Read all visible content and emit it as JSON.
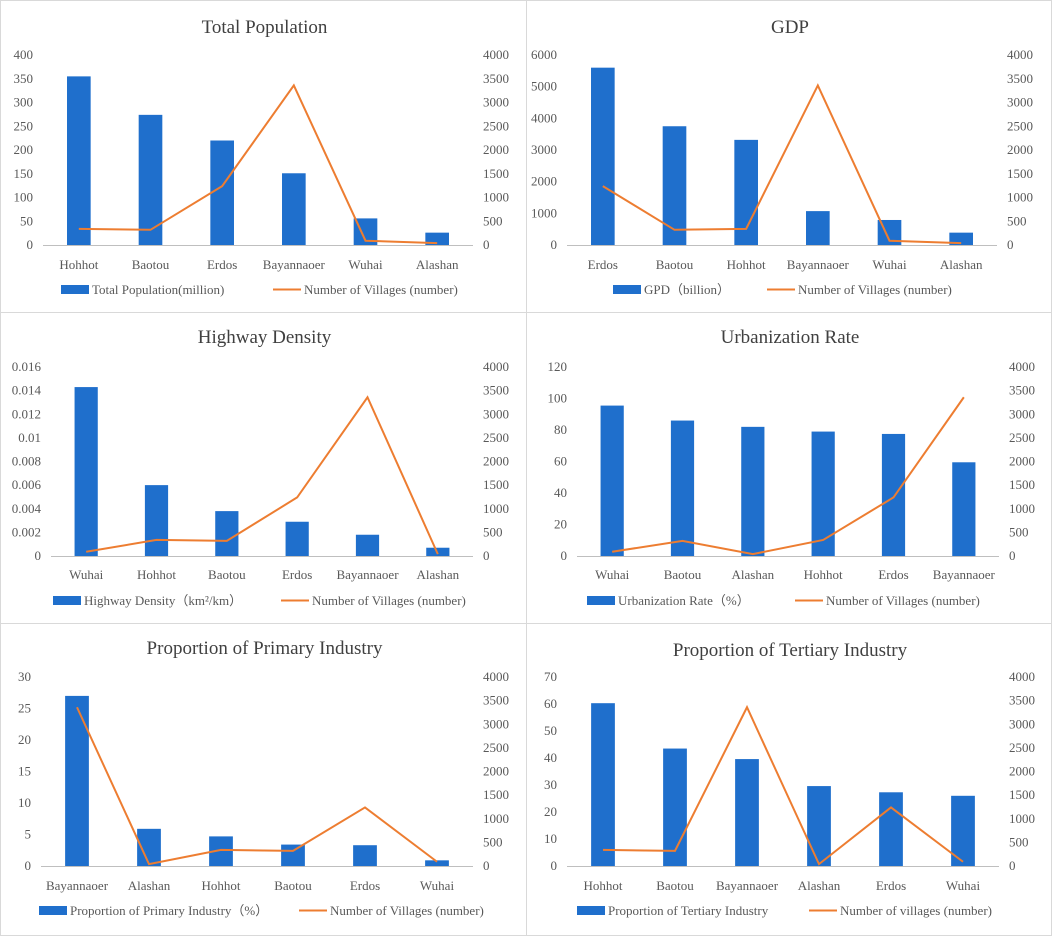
{
  "colors": {
    "bar": "#1f6fcc",
    "line": "#ed7d31",
    "axis": "#bfbfbf",
    "text": "#595959"
  },
  "chart_data": [
    {
      "type": "bar+line",
      "title": "Total Population",
      "categories": [
        "Hohhot",
        "Baotou",
        "Erdos",
        "Bayannaoer",
        "Wuhai",
        "Alashan"
      ],
      "series": [
        {
          "name": "Total Population(million)",
          "type": "bar",
          "axis": "left",
          "values": [
            355,
            274,
            220,
            151,
            56,
            26
          ]
        },
        {
          "name": "Number of Villages (number)",
          "type": "line",
          "axis": "right",
          "values": [
            340,
            320,
            1240,
            3360,
            90,
            40
          ]
        }
      ],
      "left_axis": {
        "min": 0,
        "max": 400,
        "step": 50,
        "ticks": [
          "0",
          "50",
          "100",
          "150",
          "200",
          "250",
          "300",
          "350",
          "400"
        ]
      },
      "right_axis": {
        "min": 0,
        "max": 4000,
        "step": 500,
        "ticks": [
          "0",
          "500",
          "1000",
          "1500",
          "2000",
          "2500",
          "3000",
          "3500",
          "4000"
        ]
      },
      "legend_position": "bottom"
    },
    {
      "type": "bar+line",
      "title": "GDP",
      "categories": [
        "Erdos",
        "Baotou",
        "Hohhot",
        "Bayannaoer",
        "Wuhai",
        "Alashan"
      ],
      "series": [
        {
          "name": "GPD（billion）",
          "type": "bar",
          "axis": "left",
          "values": [
            5600,
            3750,
            3320,
            1070,
            790,
            390
          ]
        },
        {
          "name": "Number of Villages (number)",
          "type": "line",
          "axis": "right",
          "values": [
            1240,
            320,
            340,
            3360,
            90,
            40
          ]
        }
      ],
      "left_axis": {
        "min": 0,
        "max": 6000,
        "step": 1000,
        "ticks": [
          "0",
          "1000",
          "2000",
          "3000",
          "4000",
          "5000",
          "6000"
        ]
      },
      "right_axis": {
        "min": 0,
        "max": 4000,
        "step": 500,
        "ticks": [
          "0",
          "500",
          "1000",
          "1500",
          "2000",
          "2500",
          "3000",
          "3500",
          "4000"
        ]
      },
      "legend_position": "bottom"
    },
    {
      "type": "bar+line",
      "title": "Highway Density",
      "categories": [
        "Wuhai",
        "Hohhot",
        "Baotou",
        "Erdos",
        "Bayannaoer",
        "Alashan"
      ],
      "series": [
        {
          "name": "Highway Density（km²/km）",
          "type": "bar",
          "axis": "left",
          "values": [
            0.0143,
            0.006,
            0.0038,
            0.0029,
            0.0018,
            0.0007
          ]
        },
        {
          "name": "Number of Villages (number)",
          "type": "line",
          "axis": "right",
          "values": [
            90,
            340,
            320,
            1240,
            3360,
            40
          ]
        }
      ],
      "left_axis": {
        "min": 0,
        "max": 0.016,
        "step": 0.002,
        "ticks": [
          "0",
          "0.002",
          "0.004",
          "0.006",
          "0.008",
          "0.01",
          "0.012",
          "0.014",
          "0.016"
        ]
      },
      "right_axis": {
        "min": 0,
        "max": 4000,
        "step": 500,
        "ticks": [
          "0",
          "500",
          "1000",
          "1500",
          "2000",
          "2500",
          "3000",
          "3500",
          "4000"
        ]
      },
      "legend_position": "bottom"
    },
    {
      "type": "bar+line",
      "title": "Urbanization Rate",
      "categories": [
        "Wuhai",
        "Baotou",
        "Alashan",
        "Hohhot",
        "Erdos",
        "Bayannaoer"
      ],
      "series": [
        {
          "name": "Urbanization Rate（%）",
          "type": "bar",
          "axis": "left",
          "values": [
            95.5,
            86,
            82,
            79,
            77.5,
            59.5
          ]
        },
        {
          "name": "Number of Villages (number)",
          "type": "line",
          "axis": "right",
          "values": [
            90,
            320,
            40,
            340,
            1240,
            3360
          ]
        }
      ],
      "left_axis": {
        "min": 0,
        "max": 120,
        "step": 20,
        "ticks": [
          "0",
          "20",
          "40",
          "60",
          "80",
          "100",
          "120"
        ]
      },
      "right_axis": {
        "min": 0,
        "max": 4000,
        "step": 500,
        "ticks": [
          "0",
          "500",
          "1000",
          "1500",
          "2000",
          "2500",
          "3000",
          "3500",
          "4000"
        ]
      },
      "legend_position": "bottom"
    },
    {
      "type": "bar+line",
      "title": "Proportion of Primary Industry",
      "categories": [
        "Bayannaoer",
        "Alashan",
        "Hohhot",
        "Baotou",
        "Erdos",
        "Wuhai"
      ],
      "series": [
        {
          "name": "Proportion of Primary Industry（%）",
          "type": "bar",
          "axis": "left",
          "values": [
            27,
            5.9,
            4.7,
            3.4,
            3.3,
            0.9
          ]
        },
        {
          "name": "Number of Villages (number)",
          "type": "line",
          "axis": "right",
          "values": [
            3360,
            40,
            340,
            320,
            1240,
            90
          ]
        }
      ],
      "left_axis": {
        "min": 0,
        "max": 30,
        "step": 5,
        "ticks": [
          "0",
          "5",
          "10",
          "15",
          "20",
          "25",
          "30"
        ]
      },
      "right_axis": {
        "min": 0,
        "max": 4000,
        "step": 500,
        "ticks": [
          "0",
          "500",
          "1000",
          "1500",
          "2000",
          "2500",
          "3000",
          "3500",
          "4000"
        ]
      },
      "legend_position": "bottom"
    },
    {
      "type": "bar+line",
      "title": "Proportion of Tertiary Industry",
      "categories": [
        "Hohhot",
        "Baotou",
        "Bayannaoer",
        "Alashan",
        "Erdos",
        "Wuhai"
      ],
      "series": [
        {
          "name": "Proportion of Tertiary Industry",
          "type": "bar",
          "axis": "left",
          "values": [
            60.3,
            43.5,
            39.6,
            29.6,
            27.3,
            26
          ]
        },
        {
          "name": "Number of villages (number)",
          "type": "line",
          "axis": "right",
          "values": [
            340,
            320,
            3360,
            40,
            1240,
            90
          ]
        }
      ],
      "left_axis": {
        "min": 0,
        "max": 70,
        "step": 10,
        "ticks": [
          "0",
          "10",
          "20",
          "30",
          "40",
          "50",
          "60",
          "70"
        ]
      },
      "right_axis": {
        "min": 0,
        "max": 4000,
        "step": 500,
        "ticks": [
          "0",
          "500",
          "1000",
          "1500",
          "2000",
          "2500",
          "3000",
          "3500",
          "4000"
        ]
      },
      "legend_position": "bottom"
    }
  ]
}
